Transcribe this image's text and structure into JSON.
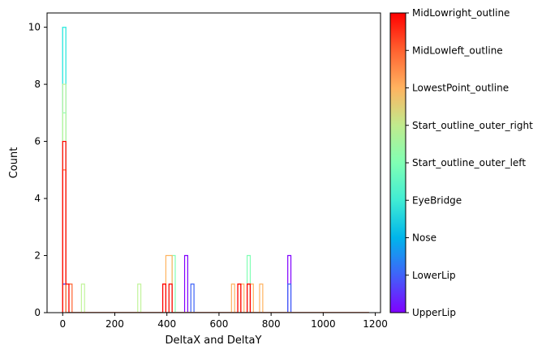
{
  "chart_data": {
    "type": "histogram",
    "title": "",
    "xlabel": "DeltaX and DeltaY",
    "ylabel": "Count",
    "xlim": [
      -60,
      1220
    ],
    "ylim": [
      0,
      10.5
    ],
    "x_ticks": [
      0,
      200,
      400,
      600,
      800,
      1000,
      1200
    ],
    "y_ticks": [
      0,
      2,
      4,
      6,
      8,
      10
    ],
    "histtype": "step",
    "bin_width": 12,
    "bin_start": 0,
    "bin_count": 98,
    "colorbar": {
      "colormap": "rainbow",
      "labels": [
        "UpperLip",
        "LowerLip",
        "Nose",
        "EyeBridge",
        "Start_outline_outer_left",
        "Start_outline_outer_right",
        "LowestPoint_outline",
        "MidLowleft_outline",
        "MidLowright_outline"
      ]
    },
    "series": [
      {
        "name": "UpperLip",
        "color": "#8000ff",
        "bins": [
          [
            0,
            1
          ],
          [
            39,
            2
          ],
          [
            72,
            2
          ]
        ]
      },
      {
        "name": "LowerLip",
        "color": "#3c62f7",
        "bins": [
          [
            0,
            1
          ],
          [
            41,
            1
          ],
          [
            72,
            1
          ]
        ]
      },
      {
        "name": "Nose",
        "color": "#00b5eb",
        "bins": [
          [
            0,
            10
          ]
        ]
      },
      {
        "name": "EyeBridge",
        "color": "#3ef0dd",
        "bins": [
          [
            0,
            10
          ]
        ]
      },
      {
        "name": "Start_outline_outer_left",
        "color": "#80ffb4",
        "bins": [
          [
            0,
            7
          ],
          [
            35,
            2
          ],
          [
            59,
            2
          ]
        ]
      },
      {
        "name": "Start_outline_outer_right",
        "color": "#c2f49c",
        "bins": [
          [
            0,
            8
          ],
          [
            6,
            1
          ],
          [
            24,
            1
          ],
          [
            34,
            1
          ]
        ]
      },
      {
        "name": "LowestPoint_outline",
        "color": "#ffb360",
        "bins": [
          [
            0,
            6
          ],
          [
            33,
            2
          ],
          [
            34,
            2
          ],
          [
            54,
            1
          ],
          [
            57,
            1
          ],
          [
            60,
            1
          ],
          [
            63,
            1
          ]
        ]
      },
      {
        "name": "MidLowleft_outline",
        "color": "#ff6330",
        "bins": [
          [
            0,
            5
          ],
          [
            2,
            1
          ],
          [
            32,
            1
          ],
          [
            56,
            1
          ],
          [
            59,
            1
          ]
        ]
      },
      {
        "name": "MidLowright_outline",
        "color": "#ff0000",
        "bins": [
          [
            0,
            6
          ],
          [
            1,
            1
          ],
          [
            32,
            1
          ],
          [
            34,
            1
          ],
          [
            56,
            1
          ],
          [
            59,
            1
          ]
        ]
      }
    ]
  }
}
